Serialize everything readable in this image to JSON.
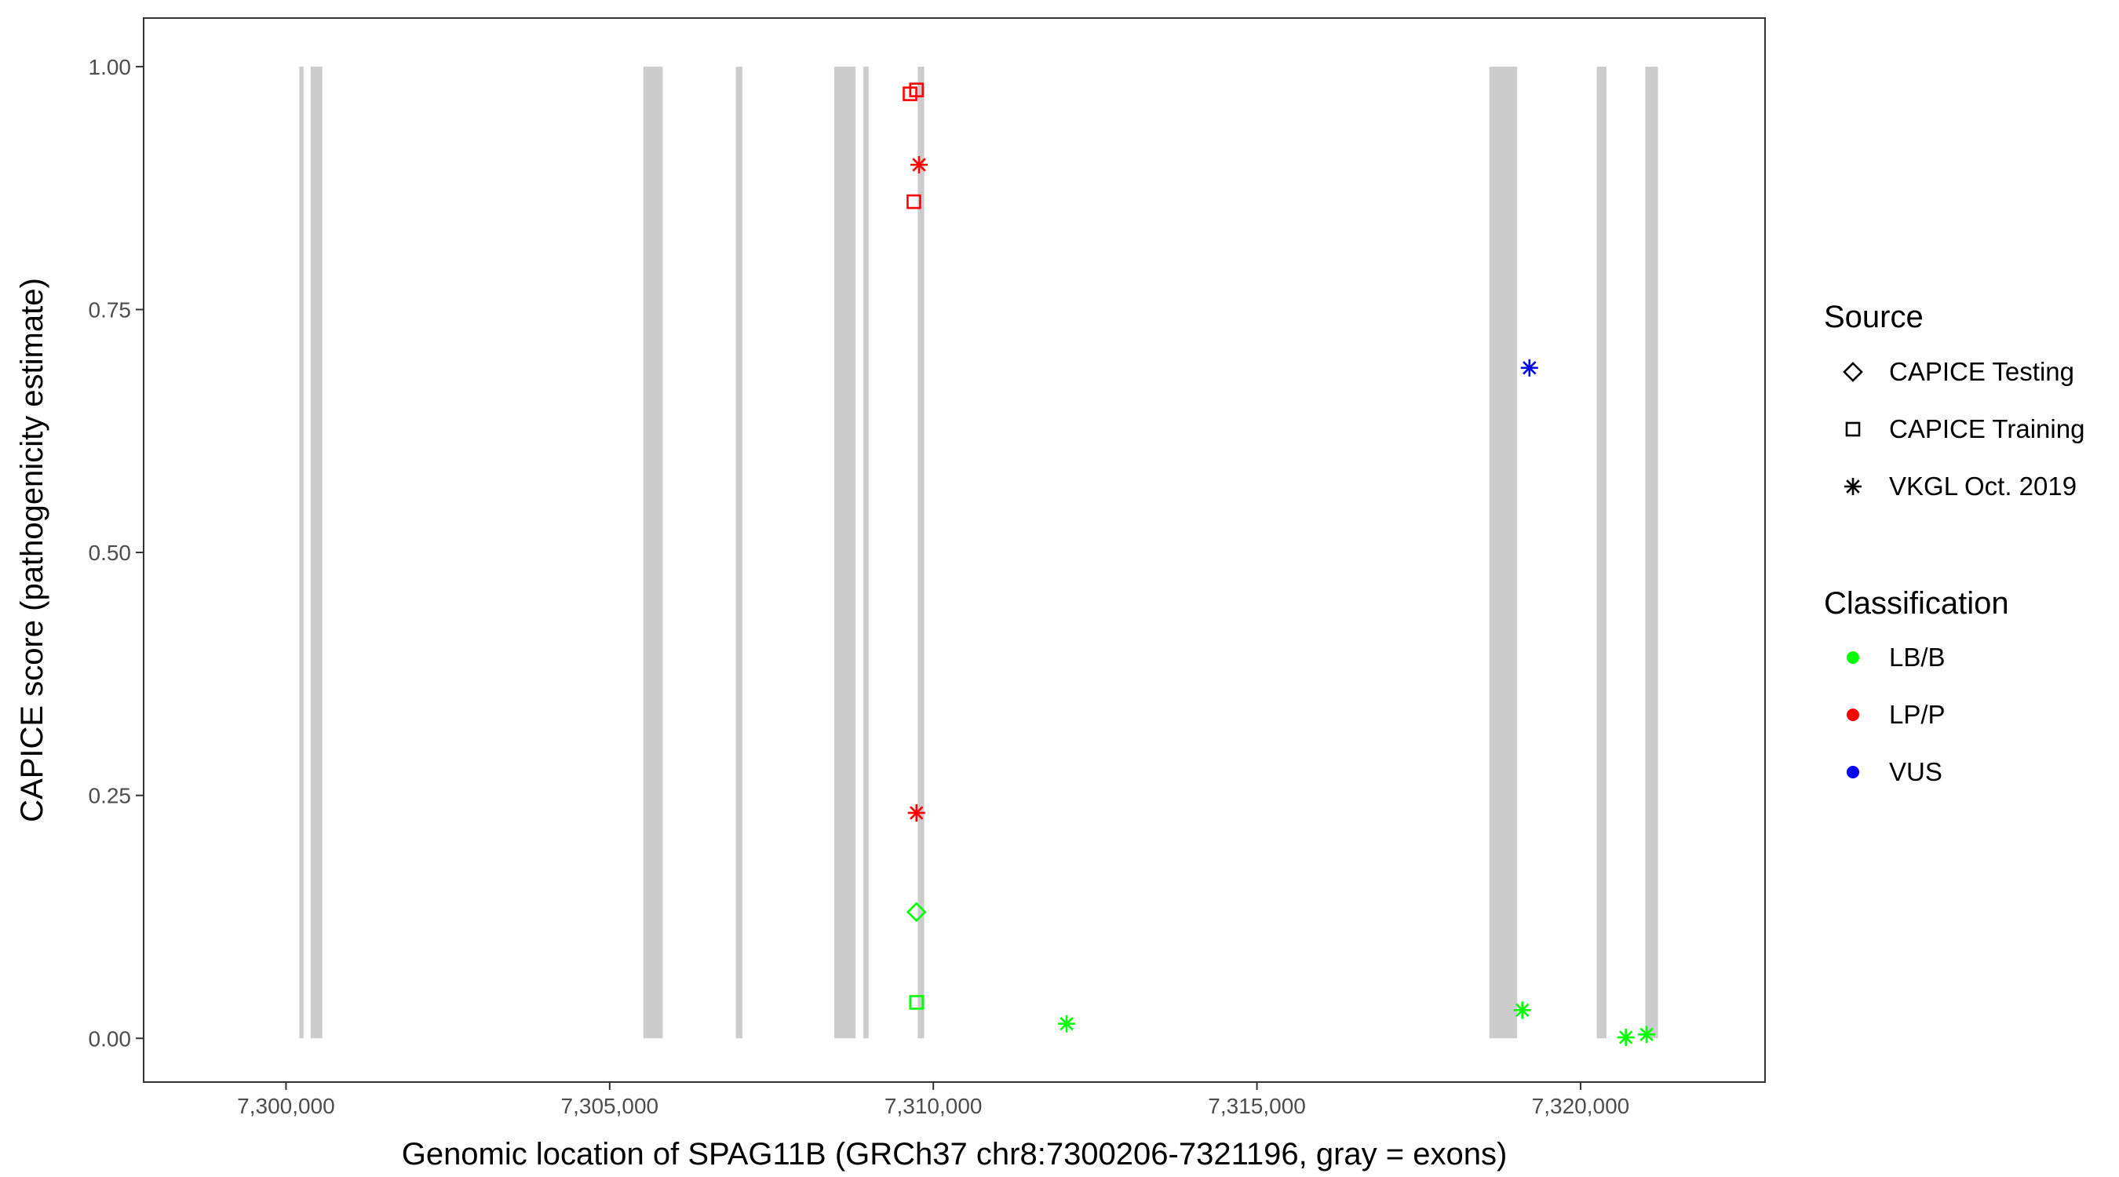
{
  "chart_data": {
    "type": "scatter",
    "xlabel": "Genomic location of SPAG11B (GRCh37 chr8:7300206-7321196, gray = exons)",
    "ylabel": "CAPICE score (pathogenicity estimate)",
    "xlim": [
      7297800,
      7322850
    ],
    "ylim": [
      -0.045,
      1.05
    ],
    "x_ticks": [
      7300000,
      7305000,
      7310000,
      7315000,
      7320000
    ],
    "x_tick_labels": [
      "7,300,000",
      "7,305,000",
      "7,310,000",
      "7,315,000",
      "7,320,000"
    ],
    "y_ticks": [
      0,
      0.25,
      0.5,
      0.75,
      1
    ],
    "y_tick_labels": [
      "0.00",
      "0.25",
      "0.50",
      "0.75",
      "1.00"
    ],
    "grid": false,
    "exons": [
      [
        7300206,
        7300270
      ],
      [
        7300380,
        7300560
      ],
      [
        7305520,
        7305820
      ],
      [
        7306950,
        7307050
      ],
      [
        7308470,
        7308800
      ],
      [
        7308920,
        7309000
      ],
      [
        7309760,
        7309860
      ],
      [
        7318590,
        7319020
      ],
      [
        7320250,
        7320400
      ],
      [
        7321000,
        7321196
      ]
    ],
    "exon_color": "#cccccc",
    "points": [
      {
        "x": 7309640,
        "y": 0.972,
        "source": "CAPICE Training",
        "classification": "LP/P"
      },
      {
        "x": 7309740,
        "y": 0.976,
        "source": "CAPICE Training",
        "classification": "LP/P"
      },
      {
        "x": 7309780,
        "y": 0.899,
        "source": "VKGL Oct. 2019",
        "classification": "LP/P"
      },
      {
        "x": 7309700,
        "y": 0.861,
        "source": "CAPICE Training",
        "classification": "LP/P"
      },
      {
        "x": 7309740,
        "y": 0.232,
        "source": "VKGL Oct. 2019",
        "classification": "LP/P"
      },
      {
        "x": 7309740,
        "y": 0.13,
        "source": "CAPICE Testing",
        "classification": "LB/B"
      },
      {
        "x": 7309740,
        "y": 0.037,
        "source": "CAPICE Training",
        "classification": "LB/B"
      },
      {
        "x": 7312060,
        "y": 0.015,
        "source": "VKGL Oct. 2019",
        "classification": "LB/B"
      },
      {
        "x": 7319210,
        "y": 0.69,
        "source": "VKGL Oct. 2019",
        "classification": "VUS"
      },
      {
        "x": 7319100,
        "y": 0.029,
        "source": "VKGL Oct. 2019",
        "classification": "LB/B"
      },
      {
        "x": 7320700,
        "y": 0.001,
        "source": "VKGL Oct. 2019",
        "classification": "LB/B"
      },
      {
        "x": 7321020,
        "y": 0.004,
        "source": "VKGL Oct. 2019",
        "classification": "LB/B"
      }
    ],
    "legend": {
      "placement": "right",
      "source_title": "Source",
      "source_items": [
        {
          "label": "CAPICE Testing",
          "shape": "diamond"
        },
        {
          "label": "CAPICE Training",
          "shape": "square"
        },
        {
          "label": "VKGL Oct. 2019",
          "shape": "asterisk"
        }
      ],
      "classification_title": "Classification",
      "classification_items": [
        {
          "label": "LB/B",
          "color": "#00ff00"
        },
        {
          "label": "LP/P",
          "color": "#ff0000"
        },
        {
          "label": "VUS",
          "color": "#0000ff"
        }
      ]
    }
  }
}
